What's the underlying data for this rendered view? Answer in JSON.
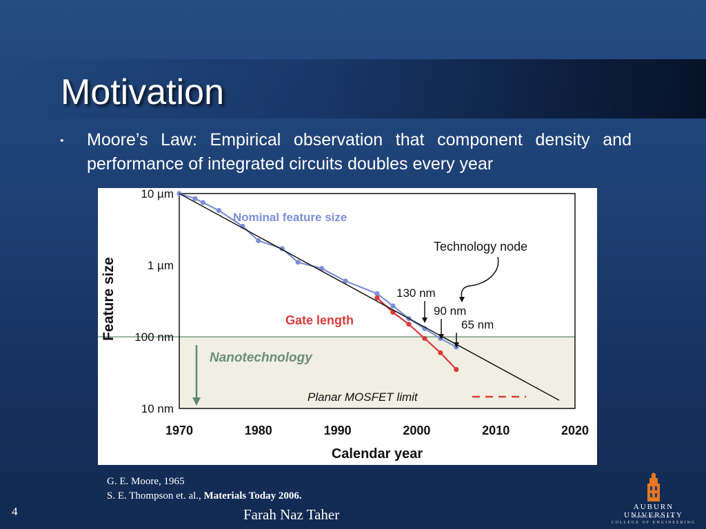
{
  "slide": {
    "title": "Motivation",
    "bullet": "Moore’s Law:  Empirical observation that component density and performance of integrated circuits doubles every year",
    "references": {
      "ref1": "G. E. Moore, 1965",
      "ref2_prefix": "S. E. Thompson et. al., ",
      "ref2_bold": "Materials Today 2006."
    },
    "page_number": "4",
    "author": "Farah Naz Taher",
    "logo": {
      "name": "AUBURN UNIVERSITY",
      "line1": "SAMUEL GINN",
      "line2": "COLLEGE OF ENGINEERING"
    },
    "colors": {
      "accent_blue": "#7b8fd6",
      "gate_red": "#d93b3b",
      "nano_region": "#f1efe2",
      "threshold_green": "#5a8a6a"
    }
  },
  "chart_data": {
    "type": "line",
    "xlabel": "Calendar year",
    "ylabel": "Feature size",
    "xlim": [
      1970,
      2020
    ],
    "xticks": [
      "1970",
      "1980",
      "1990",
      "2000",
      "2010",
      "2020"
    ],
    "yscale": "log",
    "ylim_nm": [
      10,
      10000
    ],
    "yticks": [
      {
        "value": 10000,
        "label": "10 µm"
      },
      {
        "value": 1000,
        "label": "1 µm"
      },
      {
        "value": 100,
        "label": "100 nm"
      },
      {
        "value": 10,
        "label": "10 nm"
      }
    ],
    "series": [
      {
        "name": "Nominal feature size",
        "color": "#7b8fd6",
        "points": [
          [
            1970,
            10000
          ],
          [
            1972,
            8500
          ],
          [
            1973,
            7500
          ],
          [
            1975,
            5800
          ],
          [
            1978,
            3500
          ],
          [
            1980,
            2200
          ],
          [
            1983,
            1700
          ],
          [
            1985,
            1100
          ],
          [
            1988,
            900
          ],
          [
            1991,
            600
          ],
          [
            1995,
            400
          ],
          [
            1997,
            270
          ],
          [
            1999,
            180
          ],
          [
            2001,
            130
          ],
          [
            2003,
            95
          ],
          [
            2005,
            72
          ]
        ]
      },
      {
        "name": "Gate length",
        "color": "#d93b3b",
        "points": [
          [
            1995,
            350
          ],
          [
            1997,
            220
          ],
          [
            1999,
            150
          ],
          [
            2001,
            95
          ],
          [
            2003,
            60
          ],
          [
            2005,
            35
          ]
        ]
      },
      {
        "name": "trend",
        "color": "#111111",
        "points": [
          [
            1970,
            10000
          ],
          [
            2018,
            13
          ]
        ]
      }
    ],
    "annotations": {
      "technology_node": "Technology node",
      "n130": "130 nm",
      "n90": "90 nm",
      "n65": "65 nm",
      "nanotechnology": "Nanotechnology",
      "planar_limit": "Planar MOSFET limit"
    },
    "grid": false,
    "nanotech_threshold_nm": 100
  }
}
